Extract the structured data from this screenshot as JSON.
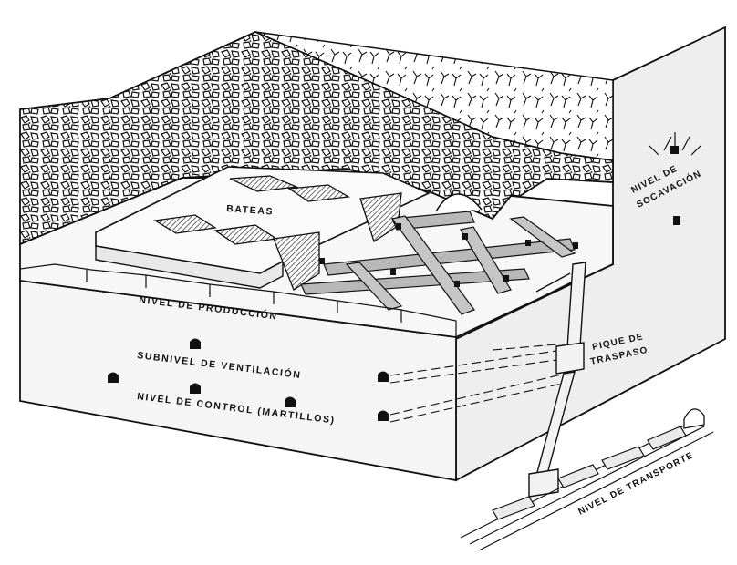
{
  "labels": {
    "bateas": "BATEAS",
    "nivel_produccion": "NIVEL DE PRODUCCIÓN",
    "subnivel_ventilacion": "SUBNIVEL DE VENTILACIÓN",
    "nivel_control": "NIVEL DE CONTROL (MARTILLOS)",
    "pique_traspaso_1": "PIQUE DE",
    "pique_traspaso_2": "TRASPASO",
    "nivel_socavacion_1": "NIVEL DE",
    "nivel_socavacion_2": "SOCAVACIÓN",
    "nivel_transporte": "NIVEL DE TRANSPORTE"
  },
  "colors": {
    "line": "#111111",
    "block_face": "#f2f2f2",
    "block_side": "#e6e6e6",
    "hatch": "#555555",
    "beam": "#b5b5b5",
    "rock": "#222222"
  }
}
